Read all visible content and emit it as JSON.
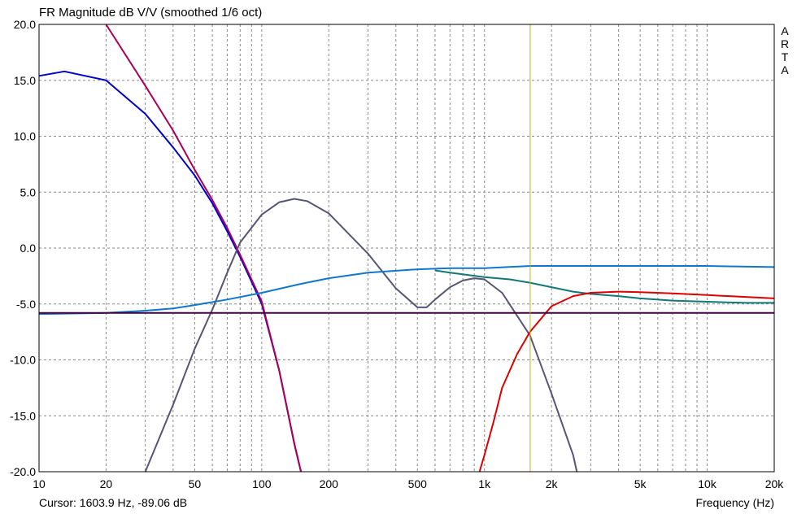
{
  "chart_data": {
    "type": "line",
    "title": "FR Magnitude dB V/V (smoothed 1/6 oct)",
    "xlabel": "Frequency (Hz)",
    "ylabel": "",
    "xscale": "log",
    "xlim": [
      10,
      20000
    ],
    "ylim": [
      -20,
      20
    ],
    "grid": true,
    "x_ticks": [
      10,
      20,
      50,
      100,
      200,
      500,
      1000,
      2000,
      5000,
      10000,
      20000
    ],
    "x_tick_labels": [
      "10",
      "20",
      "50",
      "100",
      "200",
      "500",
      "1k",
      "2k",
      "5k",
      "10k",
      "20k"
    ],
    "y_ticks": [
      20,
      15,
      10,
      5,
      0,
      -5,
      -10,
      -15,
      -20
    ],
    "y_tick_labels": [
      "20.0",
      "15.0",
      "10.0",
      "5.0",
      "0.0",
      "-5.0",
      "-10.0",
      "-15.0",
      "-20.0"
    ],
    "cursor_x": 1603.9,
    "series": [
      {
        "color": "#0000cc",
        "x": [
          10,
          13,
          20,
          30,
          40,
          50,
          60,
          70,
          80,
          90,
          100,
          120,
          140,
          150
        ],
        "y": [
          15.4,
          15.8,
          15.0,
          12.0,
          9.0,
          6.5,
          4.0,
          1.5,
          -0.8,
          -3.0,
          -5.0,
          -11.0,
          -17.5,
          -20.0
        ]
      },
      {
        "color": "#aa0055",
        "x": [
          20,
          30,
          40,
          50,
          60,
          70,
          80,
          90,
          100,
          120,
          140,
          150
        ],
        "y": [
          20.0,
          14.5,
          10.5,
          7.0,
          4.3,
          1.8,
          -0.6,
          -2.8,
          -4.8,
          -11.0,
          -17.5,
          -20.0
        ]
      },
      {
        "color": "#555577",
        "x": [
          30,
          40,
          50,
          60,
          70,
          80,
          100,
          120,
          140,
          160,
          200,
          300,
          400,
          500,
          550,
          600,
          700,
          800,
          900,
          1000,
          1200,
          1600,
          2000,
          2500,
          2600
        ],
        "y": [
          -20.0,
          -14.0,
          -9.0,
          -5.5,
          -2.2,
          0.5,
          3.0,
          4.1,
          4.4,
          4.2,
          3.1,
          -0.5,
          -3.6,
          -5.3,
          -5.3,
          -4.6,
          -3.5,
          -2.9,
          -2.7,
          -2.8,
          -4.0,
          -7.8,
          -13.0,
          -18.5,
          -20.0
        ]
      },
      {
        "color": "#1177cc",
        "x": [
          10,
          20,
          30,
          40,
          50,
          70,
          100,
          150,
          200,
          300,
          500,
          700,
          1000,
          1600,
          2000,
          5000,
          10000,
          20000
        ],
        "y": [
          -5.9,
          -5.8,
          -5.6,
          -5.4,
          -5.1,
          -4.6,
          -4.0,
          -3.2,
          -2.7,
          -2.2,
          -1.9,
          -1.8,
          -1.8,
          -1.6,
          -1.6,
          -1.6,
          -1.6,
          -1.7
        ]
      },
      {
        "color": "#117777",
        "x": [
          600,
          700,
          1000,
          1300,
          1600,
          2000,
          2500,
          3000,
          4000,
          5000,
          7000,
          10000,
          15000,
          20000
        ],
        "y": [
          -2.0,
          -2.2,
          -2.6,
          -2.8,
          -3.1,
          -3.5,
          -3.9,
          -4.1,
          -4.3,
          -4.5,
          -4.7,
          -4.8,
          -4.9,
          -4.9
        ]
      },
      {
        "color": "#dd0000",
        "x": [
          950,
          1000,
          1100,
          1200,
          1400,
          1600,
          2000,
          2500,
          3000,
          4000,
          5000,
          7000,
          10000,
          20000
        ],
        "y": [
          -20.0,
          -18.5,
          -15.5,
          -12.5,
          -9.5,
          -7.5,
          -5.2,
          -4.3,
          -4.0,
          -3.9,
          -3.95,
          -4.05,
          -4.2,
          -4.5
        ]
      },
      {
        "color": "#440044",
        "x": [
          10,
          20000
        ],
        "y": [
          -5.8,
          -5.8
        ]
      }
    ]
  },
  "cursor_readout": "Cursor: 1603.9 Hz, -89.06 dB",
  "brand_letters": [
    "A",
    "R",
    "T",
    "A"
  ]
}
